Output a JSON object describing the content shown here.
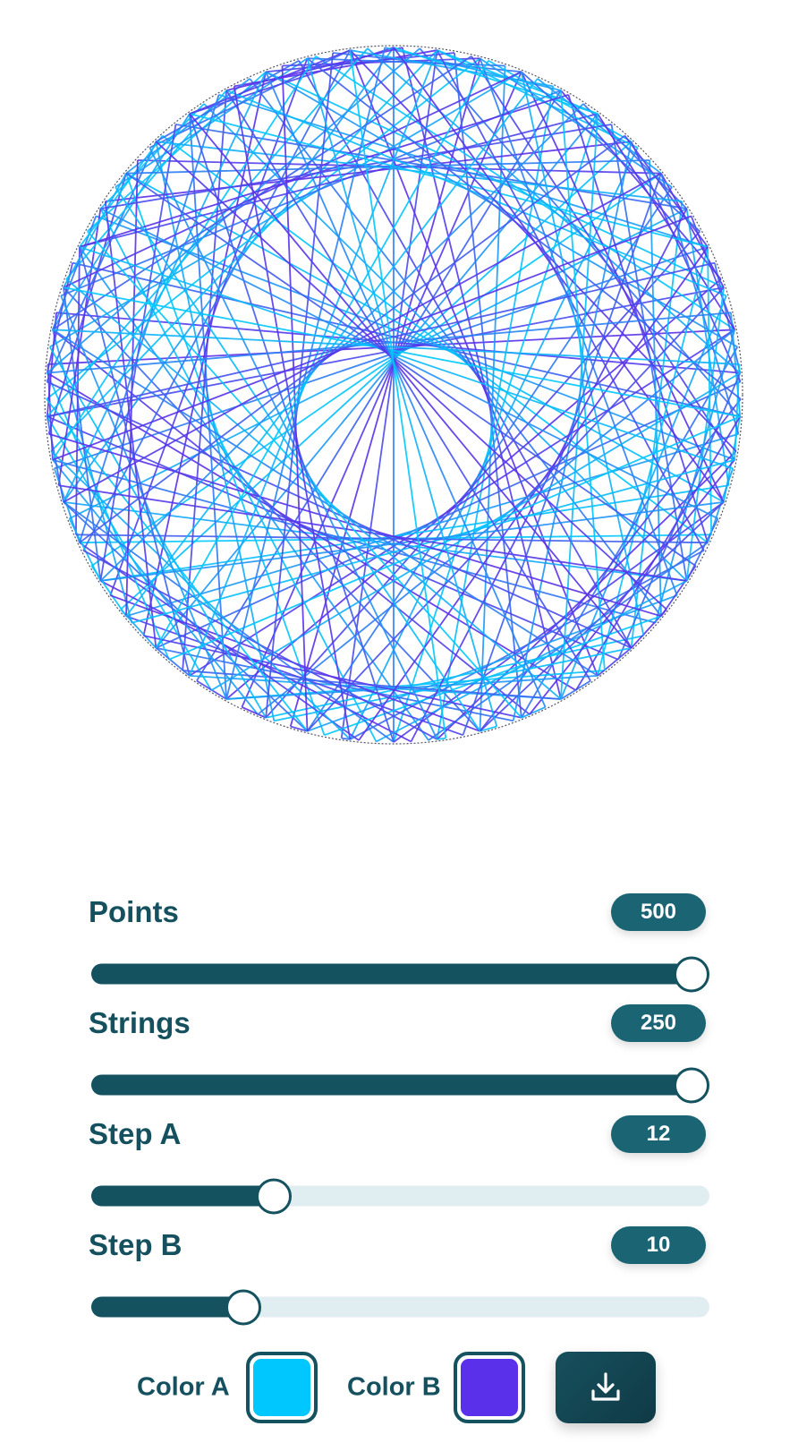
{
  "settings": {
    "points": {
      "label": "Points",
      "value": 500,
      "display": "500",
      "min": 3,
      "max": 500
    },
    "strings": {
      "label": "Strings",
      "value": 250,
      "display": "250",
      "min": 1,
      "max": 250
    },
    "step_a": {
      "label": "Step A",
      "value": 12,
      "display": "12",
      "min": 1,
      "max": 40
    },
    "step_b": {
      "label": "Step B",
      "value": 10,
      "display": "10",
      "min": 1,
      "max": 40
    }
  },
  "colors": {
    "color_a": {
      "label": "Color A",
      "value": "#00c8ff"
    },
    "color_b": {
      "label": "Color B",
      "value": "#5b30ea"
    }
  },
  "download": {
    "icon": "download-icon"
  },
  "theme": {
    "accent": "#15525f",
    "track": "#e0edf1"
  }
}
